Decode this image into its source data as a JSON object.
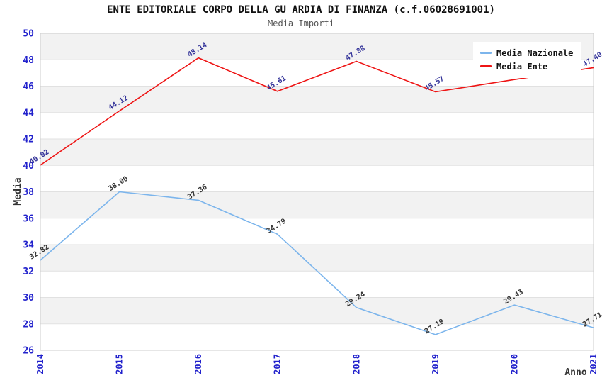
{
  "chart_data": {
    "type": "line",
    "title": "ENTE EDITORIALE CORPO DELLA GU ARDIA DI FINANZA (c.f.06028691001)",
    "subtitle": "Media Importi",
    "xlabel": "Anno",
    "ylabel": "Media",
    "categories": [
      "2014",
      "2015",
      "2016",
      "2017",
      "2018",
      "2019",
      "2020",
      "2021"
    ],
    "ylim": [
      26,
      50
    ],
    "ytick_step": 2,
    "grid": "horizontal-gridlines-with-alternating-bands",
    "legend_position": "top-right",
    "series": [
      {
        "name": "Media Nazionale",
        "color": "#7cb5ec",
        "label_color": "#333333",
        "values": [
          32.82,
          38.0,
          37.36,
          34.79,
          29.24,
          27.19,
          29.43,
          27.71
        ],
        "labels": [
          "32.82",
          "38.00",
          "37.36",
          "34.79",
          "29.24",
          "27.19",
          "29.43",
          "27.71"
        ]
      },
      {
        "name": "Media Ente",
        "color": "#ee1414",
        "label_color": "#333399",
        "values": [
          40.02,
          44.12,
          48.14,
          45.61,
          47.88,
          45.57,
          46.5,
          47.4
        ],
        "labels": [
          "40.02",
          "44.12",
          "48.14",
          "45.61",
          "47.88",
          "45.57",
          "46.50",
          "47.40"
        ]
      }
    ]
  },
  "legend": {
    "items": [
      {
        "label": "Media Nazionale",
        "color": "#7cb5ec"
      },
      {
        "label": "Media Ente",
        "color": "#ee1414"
      }
    ]
  },
  "colors": {
    "band_gray": "#f2f2f2",
    "gridline": "#e1e1e1",
    "plot_border": "#cccccc",
    "tick_label": "#2222cc",
    "axis_title": "#333333"
  }
}
